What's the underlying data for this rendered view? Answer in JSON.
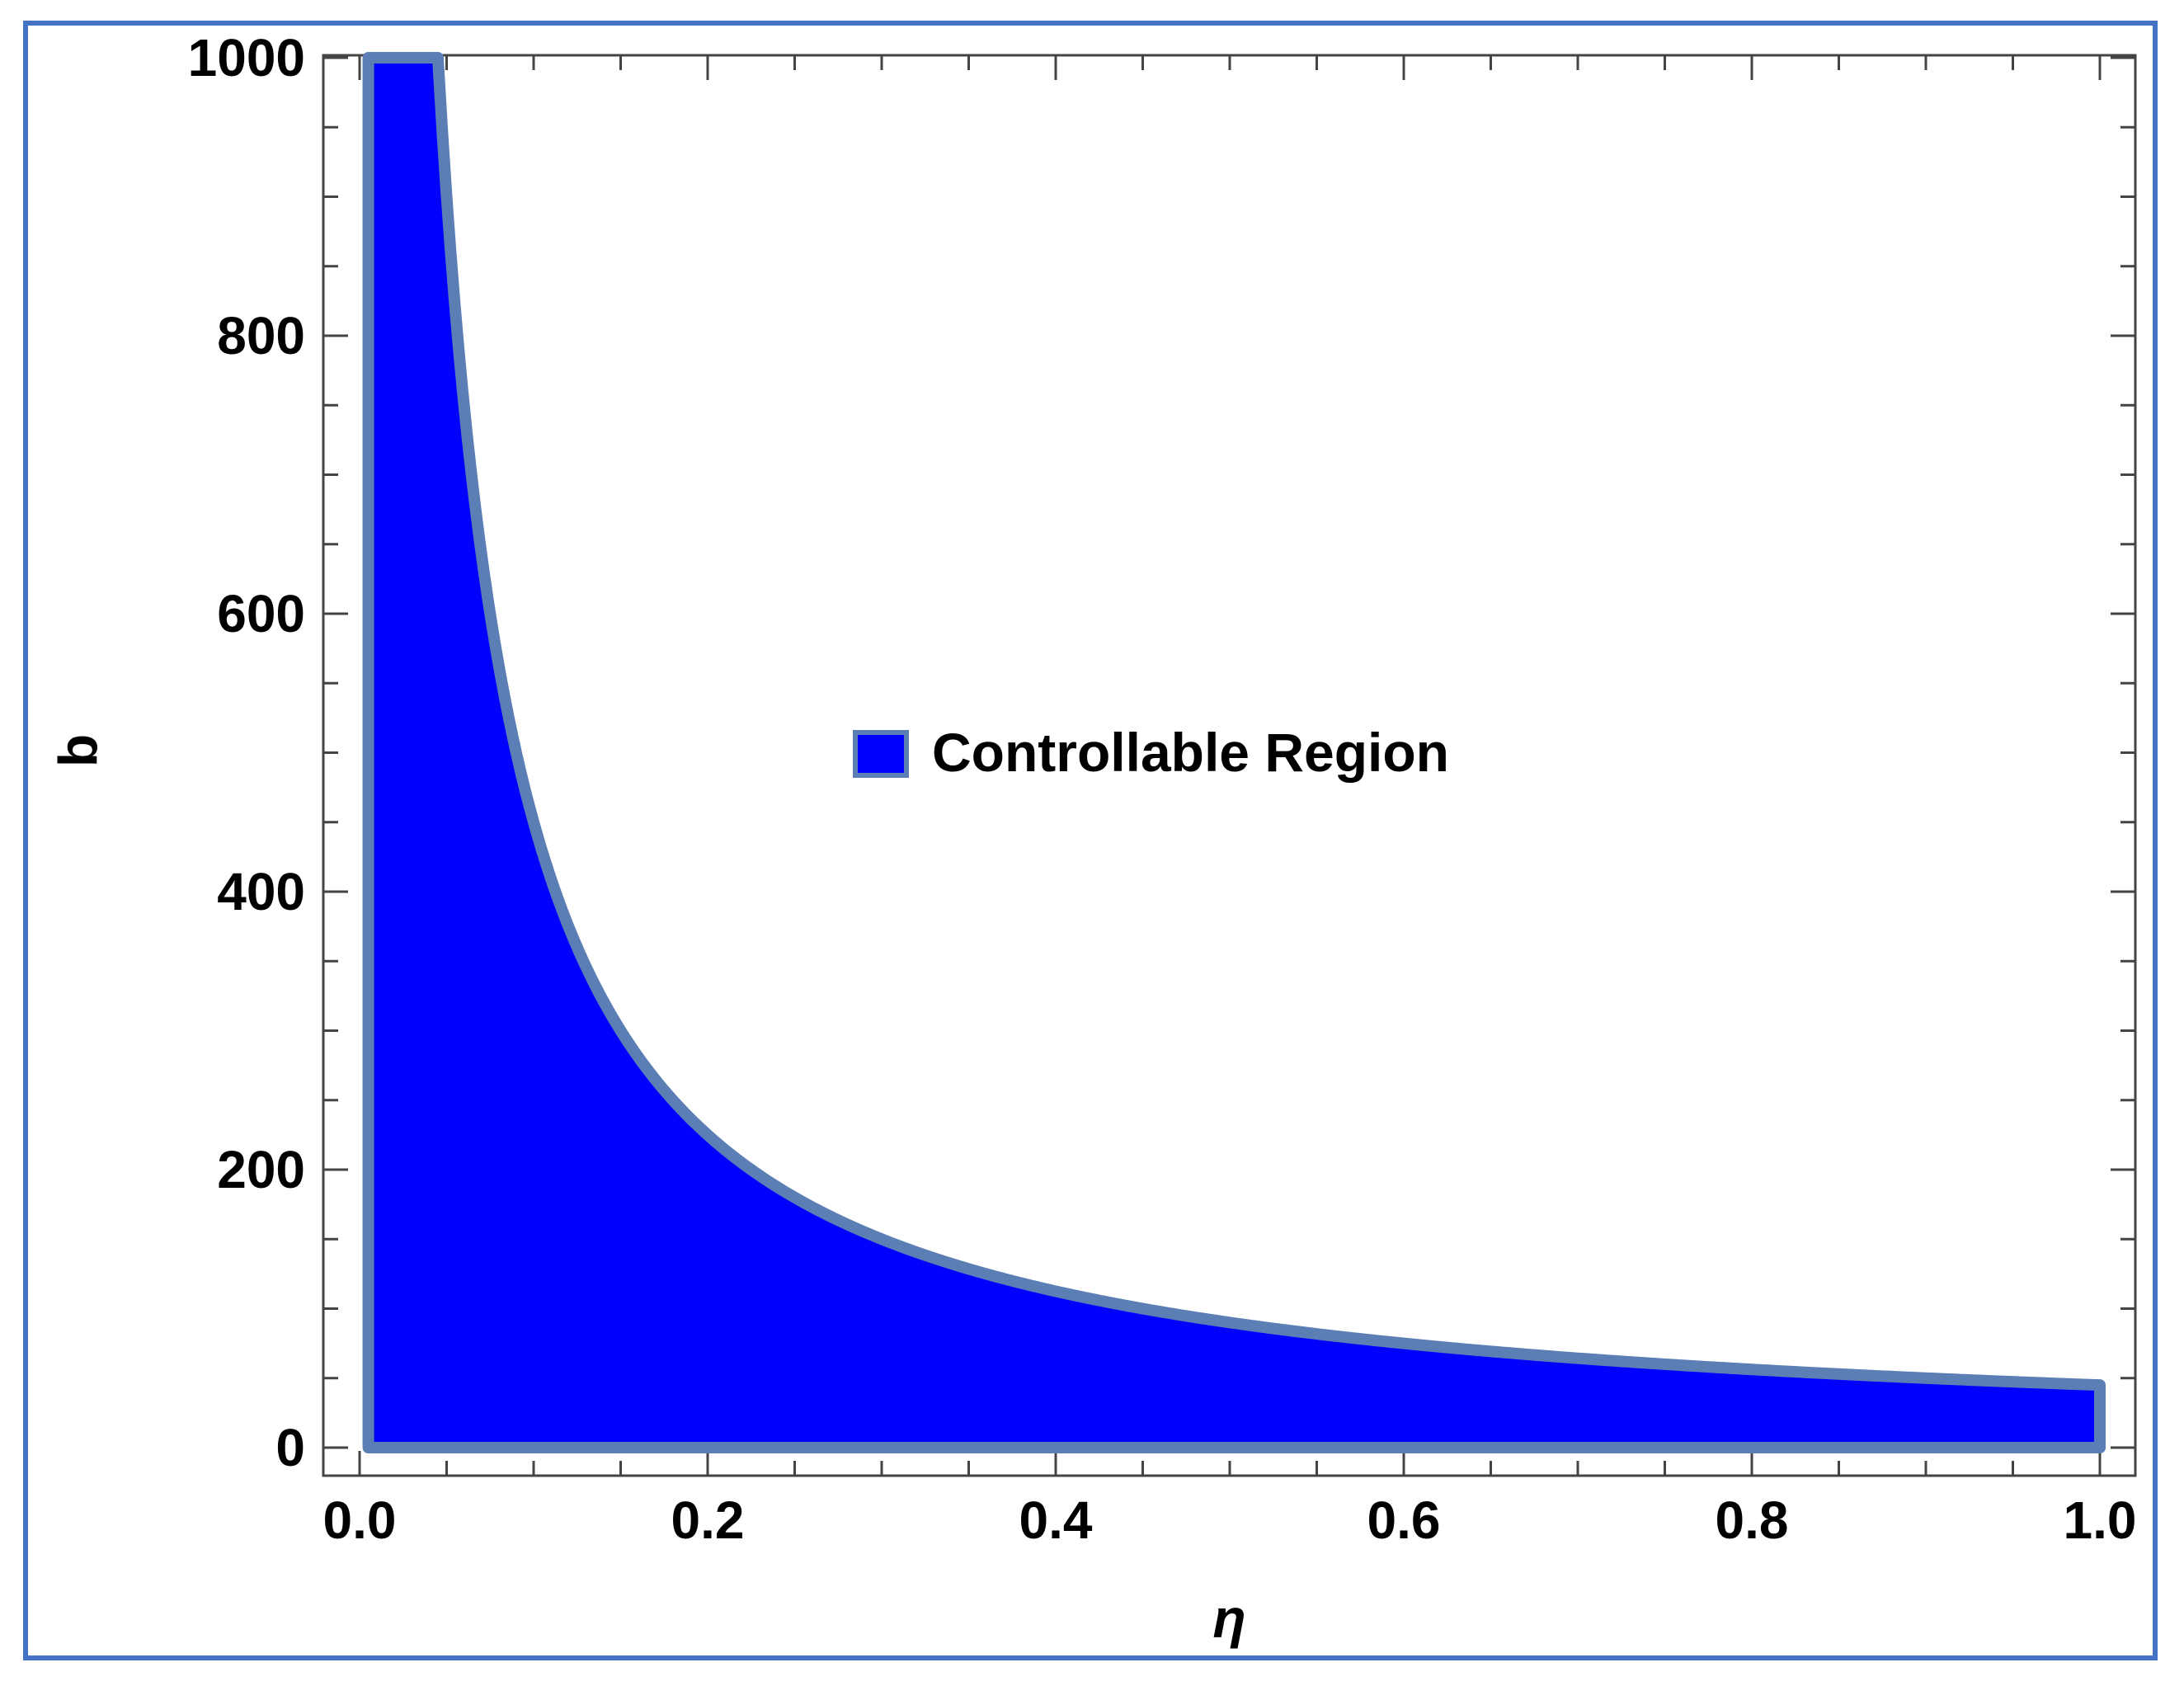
{
  "chart_data": {
    "type": "area",
    "title": "",
    "xlabel": "η",
    "ylabel": "b",
    "xlim": [
      0.0,
      1.0
    ],
    "ylim": [
      0,
      1000
    ],
    "x_ticks": [
      "0.0",
      "0.2",
      "0.4",
      "0.6",
      "0.8",
      "1.0"
    ],
    "y_ticks": [
      "0",
      "200",
      "400",
      "600",
      "800",
      "1000"
    ],
    "grid": false,
    "legend_position": "center",
    "series": [
      {
        "name": "Controllable Region",
        "fill_color": "#0000ff",
        "edge_color": "#5b7fb5",
        "x": [
          0.005,
          0.045,
          0.05,
          0.06,
          0.07,
          0.08,
          0.1,
          0.12,
          0.15,
          0.2,
          0.25,
          0.3,
          0.35,
          0.4,
          0.5,
          0.6,
          0.7,
          0.8,
          0.9,
          1.0
        ],
        "y": [
          1000,
          1000,
          900,
          750,
          640,
          560,
          450,
          375,
          300,
          225,
          180,
          150,
          128,
          112,
          90,
          75,
          64,
          56,
          50,
          45
        ]
      }
    ]
  },
  "colors": {
    "fill": "#0000ff",
    "edge": "#5b7fb5",
    "frame": "#4472c4",
    "axis": "#333333"
  }
}
